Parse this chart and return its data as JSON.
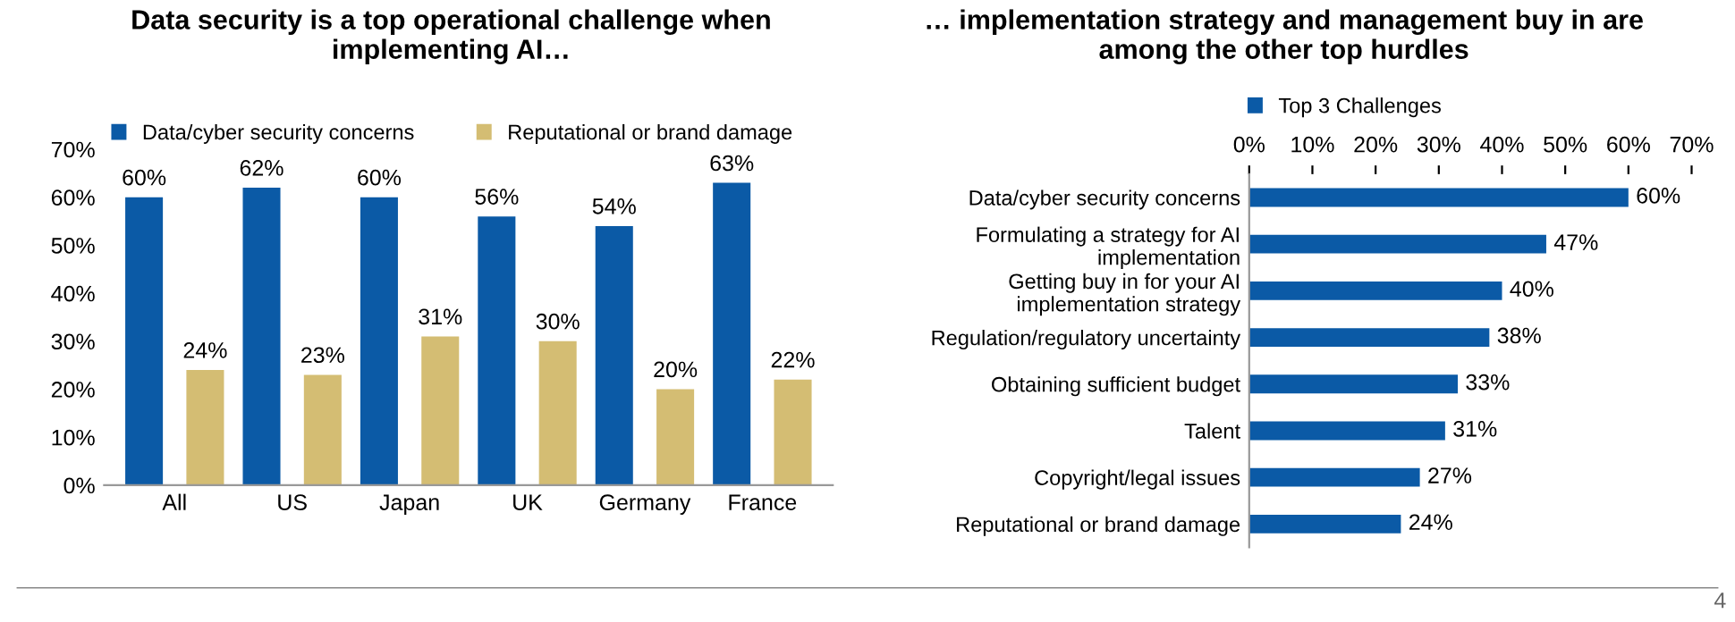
{
  "chart_data": [
    {
      "type": "bar",
      "title": "Data security is a top operational challenge when\nimplementing AI…",
      "categories": [
        "All",
        "US",
        "Japan",
        "UK",
        "Germany",
        "France"
      ],
      "series": [
        {
          "name": "Data/cyber security concerns",
          "color": "#0b5aa6",
          "values": [
            60,
            62,
            60,
            56,
            54,
            63
          ],
          "value_labels": [
            "60%",
            "62%",
            "60%",
            "56%",
            "54%",
            "63%"
          ]
        },
        {
          "name": "Reputational or brand damage",
          "color": "#d4bd73",
          "values": [
            24,
            23,
            31,
            30,
            20,
            22
          ],
          "value_labels": [
            "24%",
            "23%",
            "31%",
            "30%",
            "20%",
            "22%"
          ]
        }
      ],
      "ylim": [
        0,
        70
      ],
      "yticks": [
        {
          "value": 0,
          "label": "0%"
        },
        {
          "value": 10,
          "label": "10%"
        },
        {
          "value": 20,
          "label": "20%"
        },
        {
          "value": 30,
          "label": "30%"
        },
        {
          "value": 40,
          "label": "40%"
        },
        {
          "value": 50,
          "label": "50%"
        },
        {
          "value": 60,
          "label": "60%"
        },
        {
          "value": 70,
          "label": "70%"
        }
      ],
      "legend": "top left",
      "grid": false
    },
    {
      "type": "bar",
      "orientation": "horizontal",
      "title": "… implementation strategy and management buy in are\namong the other top hurdles",
      "categories": [
        "Data/cyber security concerns",
        "Formulating a strategy for AI\nimplementation",
        "Getting buy in for your AI\nimplementation strategy",
        "Regulation/regulatory uncertainty",
        "Obtaining sufficient budget",
        "Talent",
        "Copyright/legal issues",
        "Reputational or brand damage"
      ],
      "series": [
        {
          "name": "Top 3 Challenges",
          "color": "#0b5aa6",
          "values": [
            60,
            47,
            40,
            38,
            33,
            31,
            27,
            24
          ],
          "value_labels": [
            "60%",
            "47%",
            "40%",
            "38%",
            "33%",
            "31%",
            "27%",
            "24%"
          ]
        }
      ],
      "xlim": [
        0,
        70
      ],
      "xticks": [
        {
          "value": 0,
          "label": "0%"
        },
        {
          "value": 10,
          "label": "10%"
        },
        {
          "value": 20,
          "label": "20%"
        },
        {
          "value": 30,
          "label": "30%"
        },
        {
          "value": 40,
          "label": "40%"
        },
        {
          "value": 50,
          "label": "50%"
        },
        {
          "value": 60,
          "label": "60%"
        },
        {
          "value": 70,
          "label": "70%"
        }
      ],
      "legend": "top left",
      "grid": false,
      "annotations": [
        "4"
      ]
    }
  ]
}
